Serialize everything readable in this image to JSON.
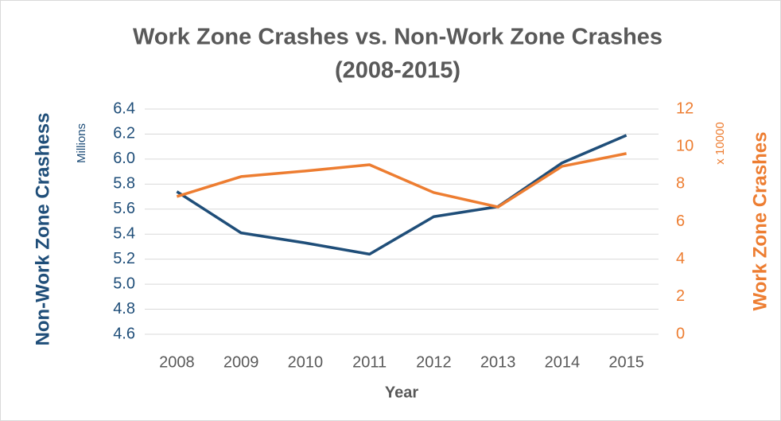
{
  "chart_data": {
    "type": "line",
    "title": [
      "Work Zone Crashes vs. Non-Work Zone Crashes",
      "(2008-2015)"
    ],
    "x_label": "Year",
    "y_label": "Non-Work Zone Crashess",
    "y_unit": "Millions",
    "y2_label": "Work Zone Crashes",
    "y2_unit": "x 10000",
    "categories": [
      "2008",
      "2009",
      "2010",
      "2011",
      "2012",
      "2013",
      "2014",
      "2015"
    ],
    "series": [
      {
        "name": "Non-Work Zone Crashes",
        "color": "#1f4e79",
        "values": [
          5.74,
          5.41,
          5.33,
          5.24,
          5.54,
          5.62,
          5.97,
          6.19
        ]
      },
      {
        "name": "Work Zone Crashes",
        "color": "#ed7d31",
        "axis": "y2",
        "values": [
          7.34,
          8.4,
          8.7,
          9.03,
          7.55,
          6.78,
          8.95,
          9.63
        ]
      }
    ],
    "ylim": [
      4.6,
      6.4
    ],
    "yticks": [
      4.6,
      4.8,
      {
        "value": 5,
        "label": "5.0"
      },
      5.2,
      5.4,
      5.6,
      5.8,
      {
        "value": 6,
        "label": "6.0"
      },
      6.2,
      6.4
    ],
    "y2lim": [
      0,
      12
    ],
    "y2ticks": [
      0,
      2,
      4,
      6,
      8,
      10,
      12
    ],
    "grid": true
  }
}
